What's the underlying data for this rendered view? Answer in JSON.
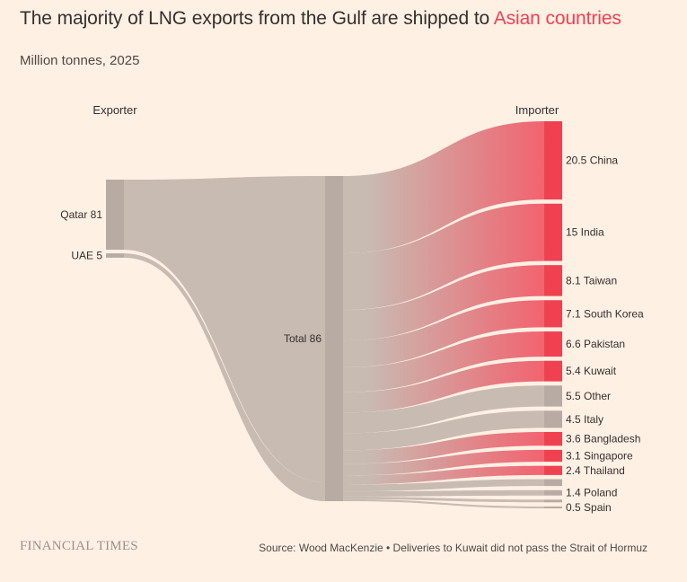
{
  "header": {
    "title_prefix": "The majority of LNG exports from the Gulf are shipped to ",
    "title_highlight": "Asian countries",
    "subtitle": "Million tonnes, 2025"
  },
  "footer": {
    "logo": "FINANCIAL TIMES",
    "source": "Source: Wood MacKenzie • Deliveries to Kuwait did not pass the Strait of Hormuz"
  },
  "colors": {
    "background": "#fff0e4",
    "asian_node": "#f04151",
    "asian_flow": "#f2636f",
    "other_node": "#b8aba3",
    "other_flow": "#c8bbb2",
    "highlight_text": "#f04150"
  },
  "chart_data": {
    "type": "sankey",
    "title": "The majority of LNG exports from the Gulf are shipped to Asian countries",
    "subtitle": "Million tonnes, 2025",
    "units": "Million tonnes",
    "column_headers": {
      "exporter": "Exporter",
      "importer": "Importer"
    },
    "exporters": [
      {
        "name": "Qatar",
        "value": 81,
        "label": "Qatar 81"
      },
      {
        "name": "UAE",
        "value": 5,
        "label": "UAE 5"
      }
    ],
    "total": {
      "name": "Total",
      "value": 86,
      "label": "Total 86"
    },
    "importers": [
      {
        "name": "China",
        "value": 20.5,
        "label": "20.5 China",
        "asian": true
      },
      {
        "name": "India",
        "value": 15,
        "label": "15 India",
        "asian": true
      },
      {
        "name": "Taiwan",
        "value": 8.1,
        "label": "8.1 Taiwan",
        "asian": true
      },
      {
        "name": "South Korea",
        "value": 7.1,
        "label": "7.1 South Korea",
        "asian": true
      },
      {
        "name": "Pakistan",
        "value": 6.6,
        "label": "6.6 Pakistan",
        "asian": true
      },
      {
        "name": "Kuwait",
        "value": 5.4,
        "label": "5.4 Kuwait",
        "asian": true
      },
      {
        "name": "Other",
        "value": 5.5,
        "label": "5.5 Other",
        "asian": false
      },
      {
        "name": "Italy",
        "value": 4.5,
        "label": "4.5 Italy",
        "asian": false
      },
      {
        "name": "Bangladesh",
        "value": 3.6,
        "label": "3.6 Bangladesh",
        "asian": true
      },
      {
        "name": "Singapore",
        "value": 3.1,
        "label": "3.1 Singapore",
        "asian": true
      },
      {
        "name": "Thailand",
        "value": 2.4,
        "label": "2.4 Thailand",
        "asian": true
      },
      {
        "name": "Unlabelled",
        "value": 1.8,
        "label": "",
        "asian": false
      },
      {
        "name": "Poland",
        "value": 1.4,
        "label": "1.4 Poland",
        "asian": false
      },
      {
        "name": "Unlabelled",
        "value": 0.7,
        "label": "",
        "asian": false
      },
      {
        "name": "Spain",
        "value": 0.5,
        "label": "0.5 Spain",
        "asian": false
      }
    ]
  }
}
